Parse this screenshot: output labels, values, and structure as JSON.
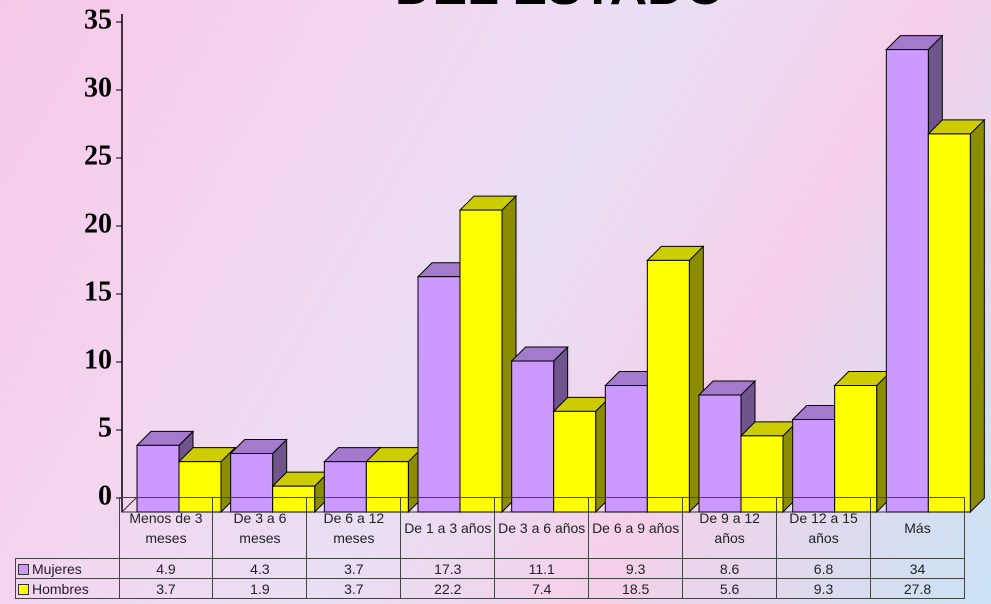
{
  "chart_data": {
    "type": "bar",
    "title": "DEL ESTADO",
    "categories": [
      "Menos de 3 meses",
      "De 3 a 6 meses",
      "De 6 a 12 meses",
      "De 1 a 3 años",
      "De 3 a 6 años",
      "De 6 a 9 años",
      "De 9 a 12 años",
      "De 12 a 15 años",
      "Más"
    ],
    "series": [
      {
        "name": "Mujeres",
        "color": "#cc99ff",
        "values": [
          4.9,
          4.3,
          3.7,
          17.3,
          11.1,
          9.3,
          8.6,
          6.8,
          34
        ]
      },
      {
        "name": "Hombres",
        "color": "#ffff00",
        "values": [
          3.7,
          1.9,
          3.7,
          22.2,
          7.4,
          18.5,
          5.6,
          9.3,
          27.8
        ]
      }
    ],
    "ylim": [
      0,
      35
    ],
    "yticks": [
      0,
      5,
      10,
      15,
      20,
      25,
      30,
      35
    ]
  }
}
